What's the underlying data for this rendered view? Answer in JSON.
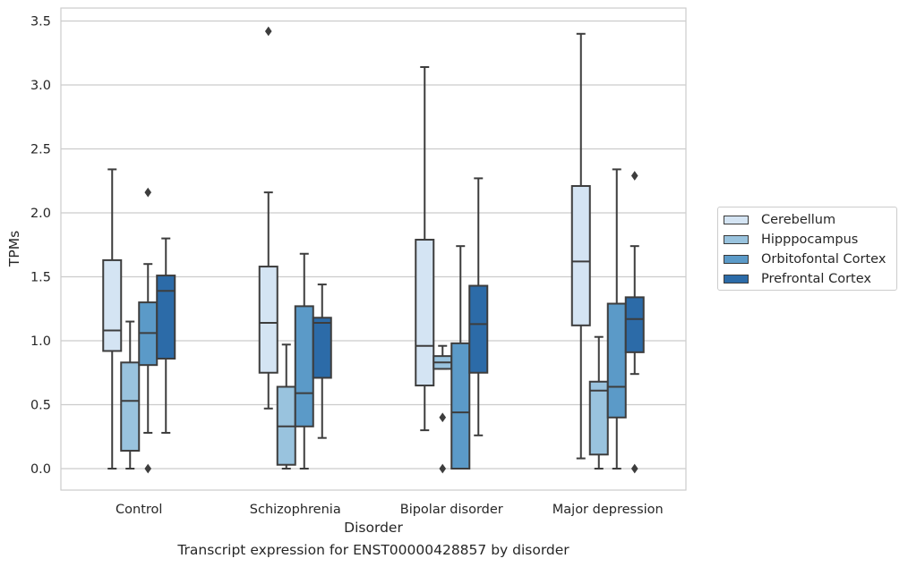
{
  "chart_data": {
    "type": "box",
    "xlabel": "Disorder",
    "ylabel": "TPMs",
    "caption": "Transcript expression for ENST00000428857 by disorder",
    "ylim": [
      -0.17,
      3.6
    ],
    "yticks": [
      "0.0",
      "0.5",
      "1.0",
      "1.5",
      "2.0",
      "2.5",
      "3.0",
      "3.5"
    ],
    "ytick_values": [
      0.0,
      0.5,
      1.0,
      1.5,
      2.0,
      2.5,
      3.0,
      3.5
    ],
    "grid": "horizontal",
    "legend_position": "right",
    "categories": [
      "Control",
      "Schizophrenia",
      "Bipolar disorder",
      "Major depression"
    ],
    "series": [
      {
        "name": "Cerebellum",
        "color": "#d4e4f3",
        "boxes": [
          {
            "whislo": 0.0,
            "q1": 0.92,
            "med": 1.08,
            "q3": 1.63,
            "whishi": 2.34,
            "fliers": []
          },
          {
            "whislo": 0.47,
            "q1": 0.75,
            "med": 1.14,
            "q3": 1.58,
            "whishi": 2.16,
            "fliers": [
              3.42
            ]
          },
          {
            "whislo": 0.3,
            "q1": 0.65,
            "med": 0.96,
            "q3": 1.79,
            "whishi": 3.14,
            "fliers": []
          },
          {
            "whislo": 0.08,
            "q1": 1.12,
            "med": 1.62,
            "q3": 2.21,
            "whishi": 3.4,
            "fliers": []
          }
        ]
      },
      {
        "name": "Hipppocampus",
        "color": "#99c3de",
        "boxes": [
          {
            "whislo": 0.0,
            "q1": 0.14,
            "med": 0.53,
            "q3": 0.83,
            "whishi": 1.15,
            "fliers": []
          },
          {
            "whislo": 0.0,
            "q1": 0.03,
            "med": 0.33,
            "q3": 0.64,
            "whishi": 0.97,
            "fliers": []
          },
          {
            "whislo": 0.78,
            "q1": 0.78,
            "med": 0.83,
            "q3": 0.88,
            "whishi": 0.96,
            "fliers": [
              0.4,
              0.0
            ]
          },
          {
            "whislo": 0.0,
            "q1": 0.11,
            "med": 0.61,
            "q3": 0.68,
            "whishi": 1.03,
            "fliers": []
          }
        ]
      },
      {
        "name": "Orbitofontal Cortex",
        "color": "#5b9ac8",
        "boxes": [
          {
            "whislo": 0.28,
            "q1": 0.81,
            "med": 1.06,
            "q3": 1.3,
            "whishi": 1.6,
            "fliers": [
              2.16,
              0.0
            ]
          },
          {
            "whislo": 0.0,
            "q1": 0.33,
            "med": 0.59,
            "q3": 1.27,
            "whishi": 1.68,
            "fliers": []
          },
          {
            "whislo": 0.0,
            "q1": 0.0,
            "med": 0.44,
            "q3": 0.98,
            "whishi": 1.74,
            "fliers": []
          },
          {
            "whislo": 0.0,
            "q1": 0.4,
            "med": 0.64,
            "q3": 1.29,
            "whishi": 2.34,
            "fliers": []
          }
        ]
      },
      {
        "name": "Prefrontal Cortex",
        "color": "#2c6ba8",
        "boxes": [
          {
            "whislo": 0.28,
            "q1": 0.86,
            "med": 1.39,
            "q3": 1.51,
            "whishi": 1.8,
            "fliers": []
          },
          {
            "whislo": 0.24,
            "q1": 0.71,
            "med": 1.14,
            "q3": 1.18,
            "whishi": 1.44,
            "fliers": []
          },
          {
            "whislo": 0.26,
            "q1": 0.75,
            "med": 1.13,
            "q3": 1.43,
            "whishi": 2.27,
            "fliers": []
          },
          {
            "whislo": 0.74,
            "q1": 0.91,
            "med": 1.17,
            "q3": 1.34,
            "whishi": 1.74,
            "fliers": [
              2.29,
              0.0
            ]
          }
        ]
      }
    ]
  }
}
